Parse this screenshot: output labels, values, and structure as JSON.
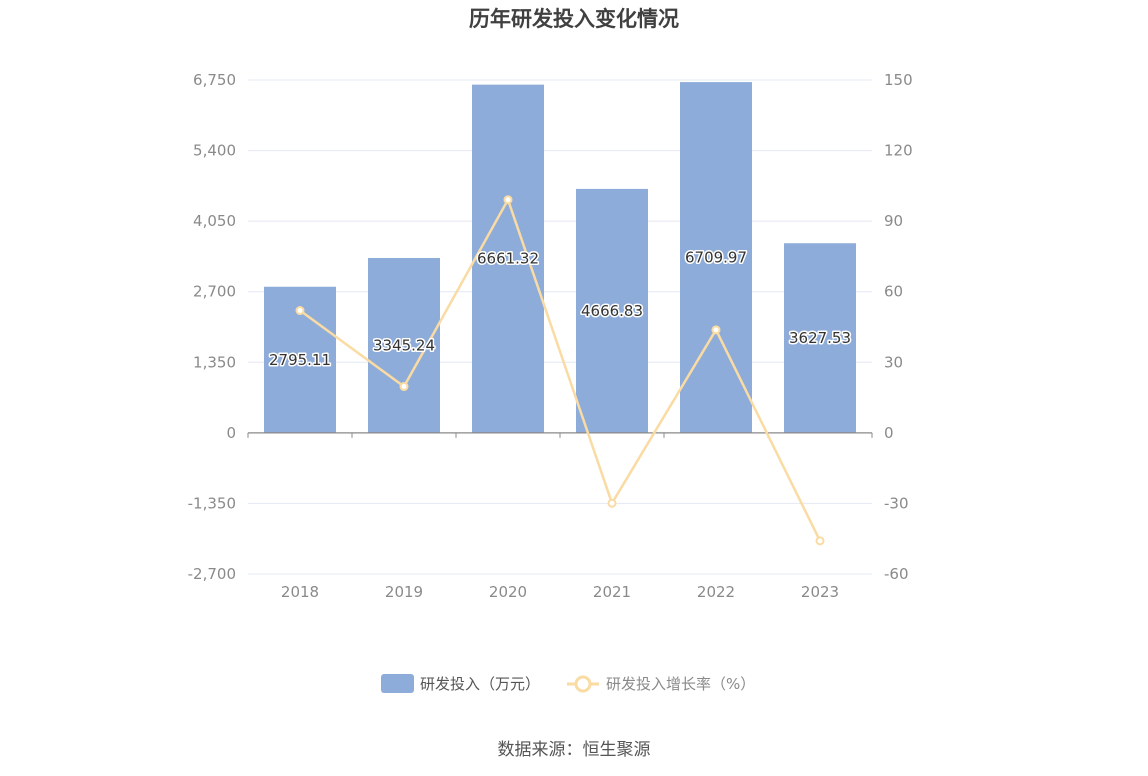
{
  "chart_data": {
    "type": "bar",
    "title": "历年研发投入变化情况",
    "categories": [
      "2018",
      "2019",
      "2020",
      "2021",
      "2022",
      "2023"
    ],
    "series": [
      {
        "name": "研发投入（万元）",
        "type": "bar",
        "axis": "left",
        "color": "#8eacd9",
        "values": [
          2795.11,
          3345.24,
          6661.32,
          4666.83,
          6709.97,
          3627.53
        ],
        "labels": [
          "2795.11",
          "3345.24",
          "6661.32",
          "4666.83",
          "6709.97",
          "3627.53"
        ]
      },
      {
        "name": "研发投入增长率（%）",
        "type": "line",
        "axis": "right",
        "color": "#f9dba3",
        "values": [
          52,
          19.7,
          99.1,
          -29.9,
          43.8,
          -45.9
        ]
      }
    ],
    "y_left": {
      "ylim": [
        -2700,
        6750
      ],
      "ticks": [
        -2700,
        -1350,
        0,
        1350,
        2700,
        4050,
        5400,
        6750
      ],
      "tick_labels": [
        "-2,700",
        "-1,350",
        "0",
        "1,350",
        "2,700",
        "4,050",
        "5,400",
        "6,750"
      ]
    },
    "y_right": {
      "ylim": [
        -60,
        150
      ],
      "ticks": [
        -60,
        -30,
        0,
        30,
        60,
        90,
        120,
        150
      ],
      "tick_labels": [
        "-60",
        "-30",
        "0",
        "30",
        "60",
        "90",
        "120",
        "150"
      ]
    },
    "grid": true,
    "legend_position": "bottom-center"
  },
  "source": "数据来源：恒生聚源"
}
